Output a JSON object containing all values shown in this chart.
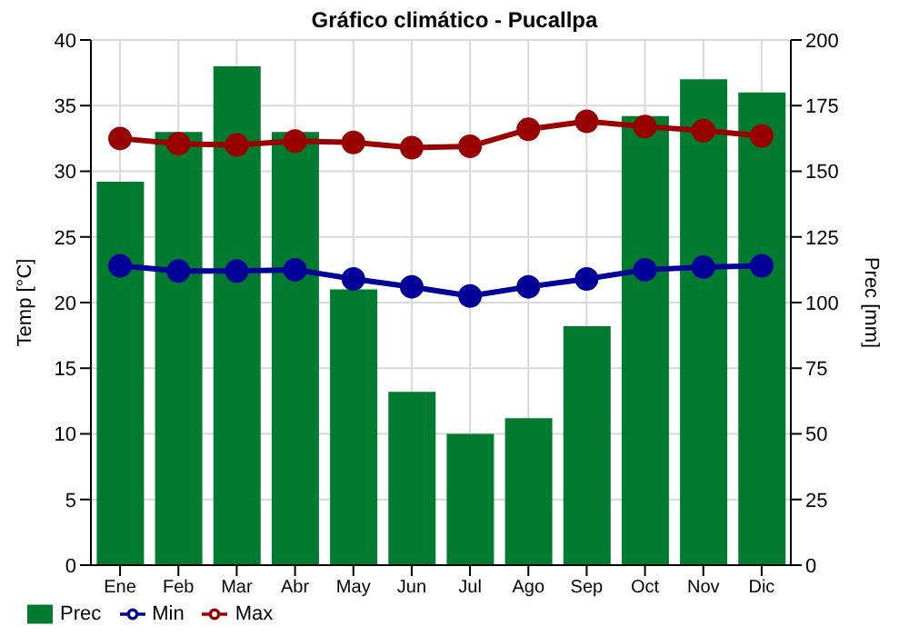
{
  "chart_data": {
    "type": "bar",
    "title": "Gráfico climático - Pucallpa",
    "ylabel": "Temp [°C]",
    "y2label": "Prec [mm]",
    "categories": [
      "Ene",
      "Feb",
      "Mar",
      "Abr",
      "May",
      "Jun",
      "Jul",
      "Ago",
      "Sep",
      "Oct",
      "Nov",
      "Dic"
    ],
    "series": [
      {
        "name": "Prec",
        "axis": "y2",
        "color": "#007b30",
        "values": [
          146,
          165,
          190,
          165,
          105,
          66,
          50,
          56,
          91,
          171,
          185,
          180
        ]
      },
      {
        "name": "Min",
        "type": "line",
        "color": "#000099",
        "values": [
          22.8,
          22.4,
          22.4,
          22.5,
          21.8,
          21.2,
          20.5,
          21.2,
          21.8,
          22.5,
          22.7,
          22.8
        ]
      },
      {
        "name": "Max",
        "type": "line",
        "color": "#990000",
        "values": [
          32.5,
          32.1,
          32.0,
          32.3,
          32.2,
          31.8,
          31.9,
          33.2,
          33.8,
          33.4,
          33.1,
          32.7
        ]
      }
    ],
    "ylim": [
      0,
      40
    ],
    "yticks": [
      0,
      5,
      10,
      15,
      20,
      25,
      30,
      35,
      40
    ],
    "y2lim": [
      0,
      200
    ],
    "y2ticks": [
      0,
      25,
      50,
      75,
      100,
      125,
      150,
      175,
      200
    ],
    "grid": true,
    "legend": "bottom left",
    "marker": "circle",
    "line_style": "solid"
  }
}
